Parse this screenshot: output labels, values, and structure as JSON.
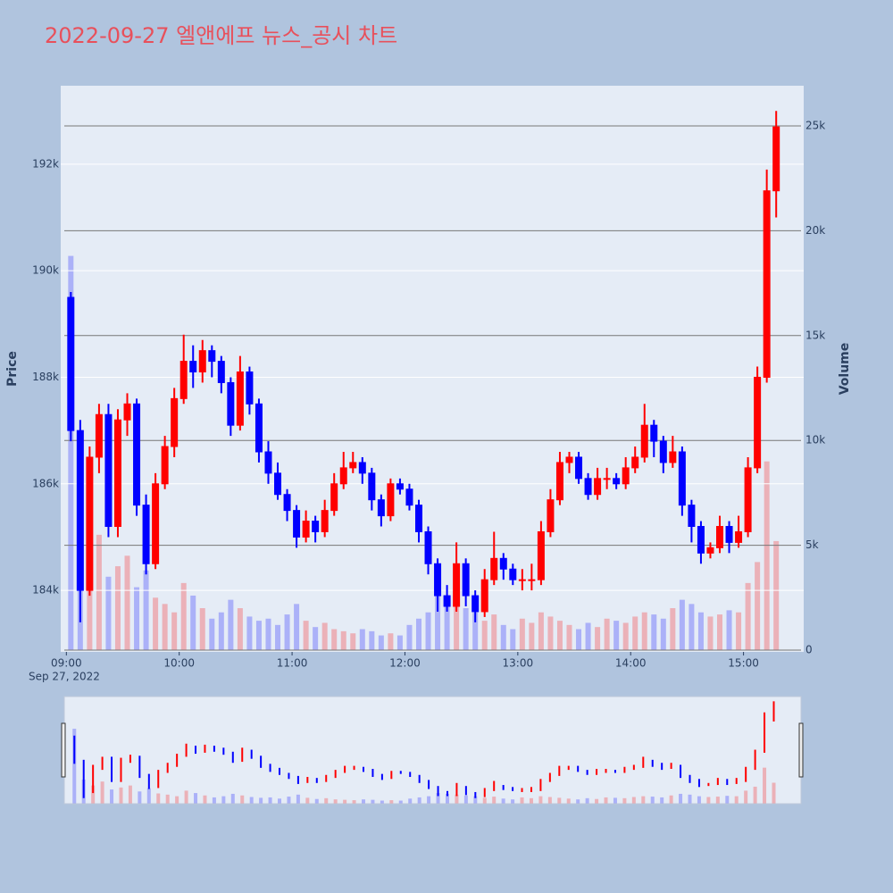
{
  "chart_data": {
    "type": "candlestick",
    "title": "2022-09-27 엘앤에프 뉴스_공시 차트",
    "y_label": "Price",
    "y2_label": "Volume",
    "x_date_label": "Sep 27, 2022",
    "x": [
      "09:00",
      "09:05",
      "09:10",
      "09:15",
      "09:20",
      "09:25",
      "09:30",
      "09:35",
      "09:40",
      "09:45",
      "09:50",
      "09:55",
      "10:00",
      "10:05",
      "10:10",
      "10:15",
      "10:20",
      "10:25",
      "10:30",
      "10:35",
      "10:40",
      "10:45",
      "10:50",
      "10:55",
      "11:00",
      "11:05",
      "11:10",
      "11:15",
      "11:20",
      "11:25",
      "11:30",
      "11:35",
      "11:40",
      "11:45",
      "11:50",
      "11:55",
      "12:00",
      "12:05",
      "12:10",
      "12:15",
      "12:20",
      "12:25",
      "12:30",
      "12:35",
      "12:40",
      "12:45",
      "12:50",
      "12:55",
      "13:00",
      "13:05",
      "13:10",
      "13:15",
      "13:20",
      "13:25",
      "13:30",
      "13:35",
      "13:40",
      "13:45",
      "13:50",
      "13:55",
      "14:00",
      "14:05",
      "14:10",
      "14:15",
      "14:20",
      "14:25",
      "14:30",
      "14:35",
      "14:40",
      "14:45",
      "14:50",
      "14:55",
      "15:00",
      "15:05",
      "15:10",
      "15:15"
    ],
    "open": [
      189500,
      187000,
      184000,
      186500,
      187300,
      185200,
      187200,
      187500,
      185600,
      184500,
      186000,
      186700,
      187600,
      188300,
      188100,
      188500,
      188300,
      187900,
      187100,
      188100,
      187500,
      186600,
      186200,
      185800,
      185500,
      185000,
      185300,
      185100,
      185500,
      186000,
      186300,
      186400,
      186200,
      185700,
      185400,
      186000,
      185900,
      185600,
      185100,
      184500,
      183900,
      183700,
      184500,
      183900,
      183600,
      184200,
      184600,
      184400,
      184200,
      184200,
      184200,
      185100,
      185700,
      186400,
      186500,
      186100,
      185800,
      186100,
      186100,
      186000,
      186300,
      186500,
      187100,
      186800,
      186400,
      186600,
      185600,
      185200,
      184700,
      184800,
      185200,
      184900,
      185100,
      186300,
      188000,
      191500
    ],
    "high": [
      189600,
      187200,
      186700,
      187500,
      187500,
      187400,
      187700,
      187600,
      185800,
      186200,
      186900,
      187800,
      188800,
      188600,
      188700,
      188600,
      188400,
      188000,
      188400,
      188200,
      187600,
      186800,
      186400,
      185900,
      185600,
      185500,
      185400,
      185700,
      186200,
      186600,
      186600,
      186500,
      186300,
      185800,
      186100,
      186100,
      186000,
      185700,
      185200,
      184600,
      184100,
      184900,
      184600,
      184000,
      184400,
      185100,
      184700,
      184500,
      184400,
      184500,
      185300,
      185900,
      186600,
      186600,
      186600,
      186200,
      186300,
      186300,
      186200,
      186500,
      186700,
      187500,
      187200,
      186900,
      186900,
      186700,
      185700,
      185300,
      184900,
      185400,
      185300,
      185400,
      186500,
      188200,
      191900,
      193000
    ],
    "low": [
      186800,
      183400,
      183900,
      186200,
      185000,
      185000,
      186900,
      185400,
      184300,
      184400,
      185900,
      186500,
      187500,
      187800,
      187900,
      188000,
      187700,
      186900,
      187000,
      187300,
      186400,
      186000,
      185700,
      185300,
      184800,
      184900,
      184900,
      185000,
      185400,
      185900,
      186200,
      186000,
      185500,
      185200,
      185300,
      185800,
      185500,
      184900,
      184300,
      183600,
      183600,
      183600,
      183700,
      183400,
      183500,
      184100,
      184200,
      184100,
      184000,
      184000,
      184100,
      185000,
      185600,
      186200,
      186000,
      185700,
      185700,
      185900,
      185900,
      185900,
      186200,
      186400,
      186500,
      186200,
      186300,
      185400,
      184900,
      184500,
      184600,
      184700,
      184700,
      184800,
      185000,
      186200,
      187900,
      191000
    ],
    "close": [
      187000,
      184000,
      186500,
      187300,
      185200,
      187200,
      187500,
      185600,
      184500,
      186000,
      186700,
      187600,
      188300,
      188100,
      188500,
      188300,
      187900,
      187100,
      188100,
      187500,
      186600,
      186200,
      185800,
      185500,
      185000,
      185300,
      185100,
      185500,
      186000,
      186300,
      186400,
      186200,
      185700,
      185400,
      186000,
      185900,
      185600,
      185100,
      184500,
      183900,
      183700,
      184500,
      183900,
      183600,
      184200,
      184600,
      184400,
      184200,
      184200,
      184200,
      185100,
      185700,
      186400,
      186500,
      186100,
      185800,
      186100,
      186100,
      186000,
      186300,
      186500,
      187100,
      186800,
      186400,
      186600,
      185600,
      185200,
      184700,
      184800,
      185200,
      184900,
      185100,
      186300,
      188000,
      191500,
      192700
    ],
    "volume": [
      18800,
      6000,
      4500,
      5500,
      3500,
      4000,
      4500,
      3000,
      3800,
      2500,
      2200,
      1800,
      3200,
      2600,
      2000,
      1500,
      1800,
      2400,
      2000,
      1600,
      1400,
      1500,
      1200,
      1700,
      2200,
      1400,
      1100,
      1300,
      1000,
      900,
      800,
      1000,
      900,
      700,
      800,
      700,
      1200,
      1500,
      1800,
      2600,
      2400,
      2200,
      2000,
      1800,
      1400,
      1700,
      1200,
      1000,
      1500,
      1300,
      1800,
      1600,
      1400,
      1200,
      1000,
      1300,
      1100,
      1500,
      1400,
      1300,
      1600,
      1800,
      1700,
      1500,
      2000,
      2400,
      2200,
      1800,
      1600,
      1700,
      1900,
      1800,
      3200,
      4200,
      9000,
      5200
    ],
    "increasing_color": "#ff0000",
    "decreasing_color": "#0000ff",
    "xlim": [
      "08:57",
      "15:32"
    ],
    "xticks": [
      "09:00",
      "10:00",
      "11:00",
      "12:00",
      "13:00",
      "14:00",
      "15:00"
    ],
    "ylim": [
      182845,
      193473
    ],
    "yticks": [
      {
        "value": 184000,
        "label": "184k"
      },
      {
        "value": 186000,
        "label": "186k"
      },
      {
        "value": 188000,
        "label": "188k"
      },
      {
        "value": 190000,
        "label": "190k"
      },
      {
        "value": 192000,
        "label": "192k"
      }
    ],
    "y2lim": [
      -85,
      26915
    ],
    "y2ticks": [
      0,
      {
        "value": 5000,
        "label": "5k"
      },
      {
        "value": 10000,
        "label": "10k"
      },
      {
        "value": 15000,
        "label": "15k"
      },
      {
        "value": 20000,
        "label": "20k"
      },
      {
        "value": 25000,
        "label": "25k"
      }
    ],
    "grid": true,
    "rangeslider": true
  }
}
